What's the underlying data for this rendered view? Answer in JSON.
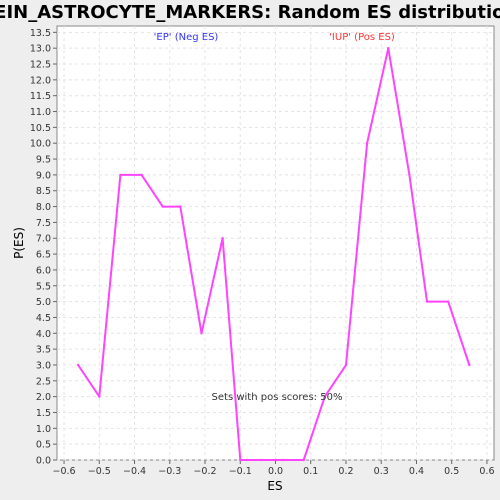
{
  "chart_data": {
    "type": "line",
    "title": "LEIN_ASTROCYTE_MARKERS: Random ES distribution",
    "xlabel": "ES",
    "ylabel": "P(ES)",
    "xlim": [
      -0.62,
      0.62
    ],
    "ylim": [
      0,
      13.7
    ],
    "x_ticks": [
      "-0.6",
      "-0.5",
      "-0.4",
      "-0.3",
      "-0.2",
      "-0.1",
      "0.0",
      "0.1",
      "0.2",
      "0.3",
      "0.4",
      "0.5",
      "0.6"
    ],
    "y_ticks": [
      "0.0",
      "0.5",
      "1.0",
      "1.5",
      "2.0",
      "2.5",
      "3.0",
      "3.5",
      "4.0",
      "4.5",
      "5.0",
      "5.5",
      "6.0",
      "6.5",
      "7.0",
      "7.5",
      "8.0",
      "8.5",
      "9.0",
      "9.5",
      "10.0",
      "10.5",
      "11.0",
      "11.5",
      "12.0",
      "12.5",
      "13.0",
      "13.5"
    ],
    "grid": true,
    "series": [
      {
        "color": "#ff44ff",
        "x": [
          -0.56,
          -0.5,
          -0.44,
          -0.38,
          -0.32,
          -0.27,
          -0.21,
          -0.15,
          -0.1,
          -0.04,
          0.02,
          0.08,
          0.14,
          0.2,
          0.26,
          0.32,
          0.38,
          0.43,
          0.49,
          0.55
        ],
        "y": [
          3.0,
          2.0,
          9.0,
          9.0,
          8.0,
          8.0,
          4.0,
          7.0,
          0.0,
          0.0,
          0.0,
          0.0,
          2.0,
          3.0,
          10.0,
          13.0,
          9.0,
          5.0,
          5.0,
          3.0
        ]
      }
    ],
    "annotations": [
      {
        "text": "'EP' (Neg ES)",
        "color": "#3333ff"
      },
      {
        "text": "'IUP' (Pos ES)",
        "color": "#ff3333"
      },
      {
        "text": "Sets with pos scores: 50%",
        "color": "#333333"
      }
    ]
  }
}
